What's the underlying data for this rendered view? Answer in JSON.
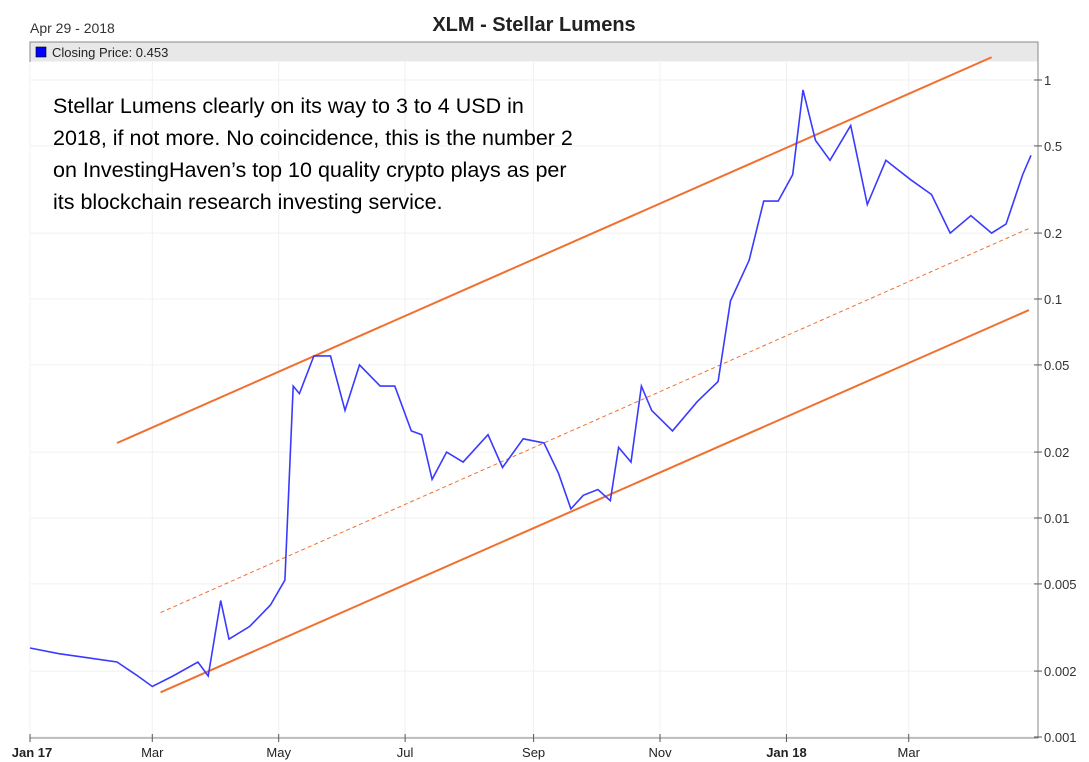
{
  "chart_data": {
    "type": "line",
    "title": "XLM - Stellar Lumens",
    "date_label": "Apr 29 - 2018",
    "legend": {
      "label": "Closing Price: 0.453",
      "color": "#0000ff",
      "placement": "top-left"
    },
    "y_scale": "log",
    "ylim": [
      0.001,
      1.3
    ],
    "xlim": [
      "2017-01-01",
      "2018-04-29"
    ],
    "y_ticks": [
      "1",
      "0.5",
      "0.2",
      "0.1",
      "0.05",
      "0.02",
      "0.01",
      "0.005",
      "0.002",
      "0.001"
    ],
    "x_ticks": [
      {
        "label": "Jan 17",
        "date": "2017-01-01",
        "bold": true
      },
      {
        "label": "Mar",
        "date": "2017-03-01"
      },
      {
        "label": "May",
        "date": "2017-05-01"
      },
      {
        "label": "Jul",
        "date": "2017-07-01"
      },
      {
        "label": "Sep",
        "date": "2017-09-01"
      },
      {
        "label": "Nov",
        "date": "2017-11-01"
      },
      {
        "label": "Jan 18",
        "date": "2018-01-01",
        "bold": true
      },
      {
        "label": "Mar",
        "date": "2018-03-01"
      }
    ],
    "grid": true,
    "series": [
      {
        "color": "#3a3aff",
        "points": [
          [
            "2017-01-01",
            0.00255
          ],
          [
            "2017-01-15",
            0.0024
          ],
          [
            "2017-01-29",
            0.0023
          ],
          [
            "2017-02-12",
            0.0022
          ],
          [
            "2017-02-22",
            0.0019
          ],
          [
            "2017-03-01",
            0.0017
          ],
          [
            "2017-03-11",
            0.0019
          ],
          [
            "2017-03-23",
            0.0022
          ],
          [
            "2017-03-28",
            0.0019
          ],
          [
            "2017-04-03",
            0.0042
          ],
          [
            "2017-04-07",
            0.0028
          ],
          [
            "2017-04-17",
            0.0032
          ],
          [
            "2017-04-27",
            0.004
          ],
          [
            "2017-05-04",
            0.0052
          ],
          [
            "2017-05-08",
            0.04
          ],
          [
            "2017-05-11",
            0.037
          ],
          [
            "2017-05-18",
            0.055
          ],
          [
            "2017-05-26",
            0.055
          ],
          [
            "2017-06-02",
            0.031
          ],
          [
            "2017-06-09",
            0.05
          ],
          [
            "2017-06-19",
            0.04
          ],
          [
            "2017-06-26",
            0.04
          ],
          [
            "2017-07-04",
            0.025
          ],
          [
            "2017-07-09",
            0.024
          ],
          [
            "2017-07-14",
            0.015
          ],
          [
            "2017-07-21",
            0.02
          ],
          [
            "2017-07-29",
            0.018
          ],
          [
            "2017-08-10",
            0.024
          ],
          [
            "2017-08-17",
            0.017
          ],
          [
            "2017-08-27",
            0.023
          ],
          [
            "2017-09-06",
            0.022
          ],
          [
            "2017-09-13",
            0.016
          ],
          [
            "2017-09-19",
            0.011
          ],
          [
            "2017-09-25",
            0.0127
          ],
          [
            "2017-10-02",
            0.0135
          ],
          [
            "2017-10-08",
            0.012
          ],
          [
            "2017-10-12",
            0.021
          ],
          [
            "2017-10-18",
            0.018
          ],
          [
            "2017-10-23",
            0.04
          ],
          [
            "2017-10-28",
            0.031
          ],
          [
            "2017-11-07",
            0.025
          ],
          [
            "2017-11-19",
            0.034
          ],
          [
            "2017-11-29",
            0.042
          ],
          [
            "2017-12-05",
            0.098
          ],
          [
            "2017-12-14",
            0.15
          ],
          [
            "2017-12-21",
            0.28
          ],
          [
            "2017-12-28",
            0.28
          ],
          [
            "2018-01-04",
            0.37
          ],
          [
            "2018-01-09",
            0.9
          ],
          [
            "2018-01-15",
            0.53
          ],
          [
            "2018-01-22",
            0.43
          ],
          [
            "2018-02-01",
            0.62
          ],
          [
            "2018-02-09",
            0.27
          ],
          [
            "2018-02-18",
            0.43
          ],
          [
            "2018-03-02",
            0.35
          ],
          [
            "2018-03-12",
            0.3
          ],
          [
            "2018-03-21",
            0.2
          ],
          [
            "2018-03-31",
            0.24
          ],
          [
            "2018-04-10",
            0.2
          ],
          [
            "2018-04-17",
            0.22
          ],
          [
            "2018-04-25",
            0.37
          ],
          [
            "2018-04-29",
            0.453
          ]
        ]
      }
    ],
    "trend_lines": [
      {
        "style": "solid",
        "color": "#f07030",
        "from": [
          "2017-02-12",
          0.022
        ],
        "to": [
          "2018-04-10",
          1.27
        ]
      },
      {
        "style": "dashed",
        "color": "#f07030",
        "from": [
          "2017-03-05",
          0.0037
        ],
        "to": [
          "2018-04-28",
          0.21
        ]
      },
      {
        "style": "solid",
        "color": "#f07030",
        "from": [
          "2017-03-05",
          0.0016
        ],
        "to": [
          "2018-04-28",
          0.089
        ]
      }
    ],
    "annotation": "Stellar Lumens clearly on its way to 3 to 4 USD in 2018, if not more. No coincidence, this is the number 2 on InvestingHaven’s top 10 quality crypto plays as per its blockchain research investing service."
  }
}
